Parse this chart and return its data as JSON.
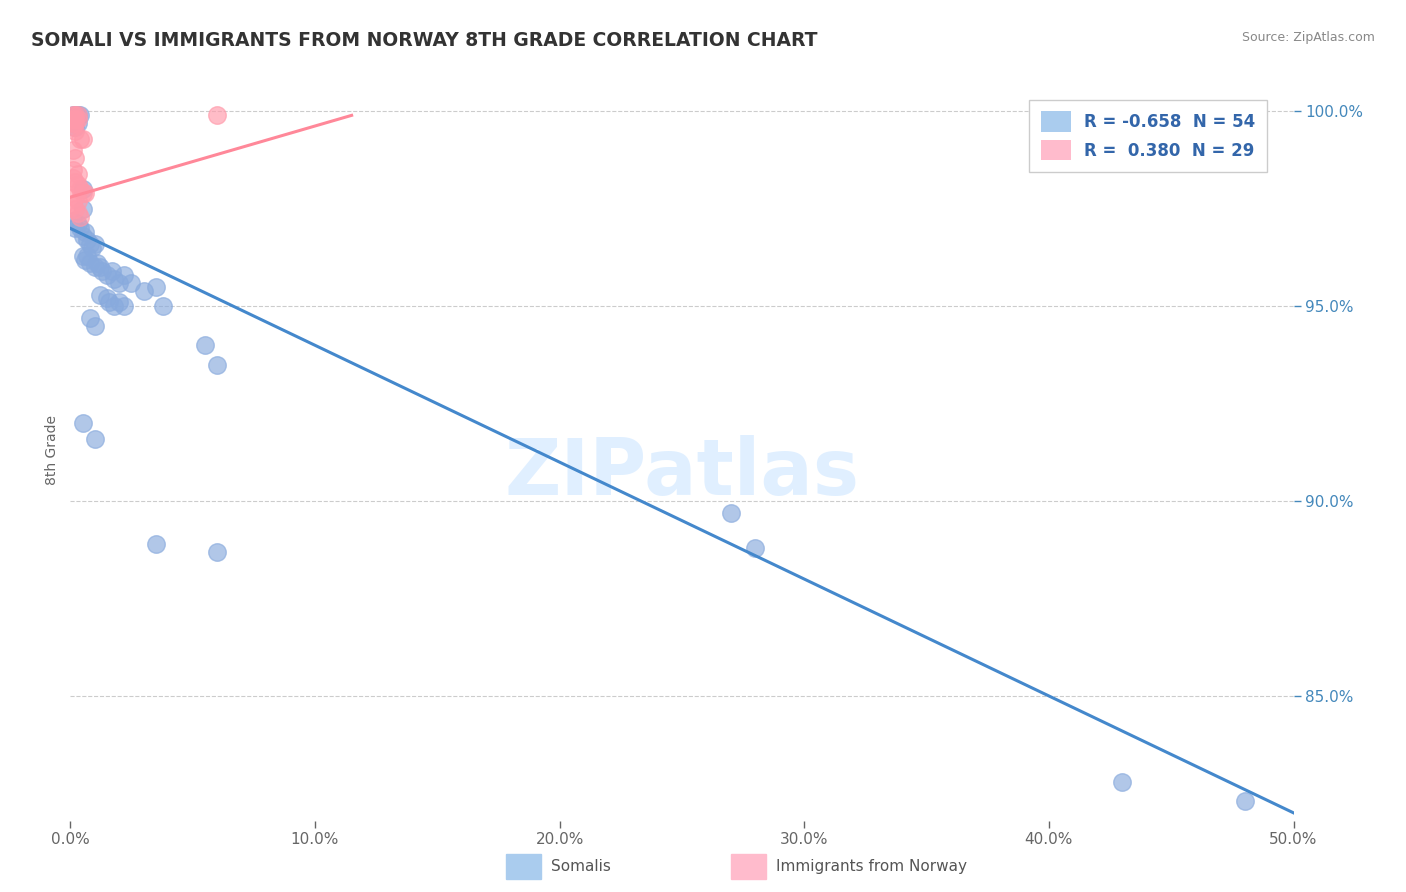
{
  "title": "SOMALI VS IMMIGRANTS FROM NORWAY 8TH GRADE CORRELATION CHART",
  "source": "Source: ZipAtlas.com",
  "ylabel": "8th Grade",
  "xlim": [
    0.0,
    0.5
  ],
  "ylim": [
    0.818,
    1.008
  ],
  "yticks": [
    0.85,
    0.9,
    0.95,
    1.0
  ],
  "ytick_labels": [
    "85.0%",
    "90.0%",
    "95.0%",
    "100.0%"
  ],
  "xticks": [
    0.0,
    0.1,
    0.2,
    0.3,
    0.4,
    0.5
  ],
  "xtick_labels": [
    "0.0%",
    "10.0%",
    "20.0%",
    "30.0%",
    "40.0%",
    "50.0%"
  ],
  "blue_R": -0.658,
  "blue_N": 54,
  "pink_R": 0.38,
  "pink_N": 29,
  "blue_color": "#88AADD",
  "pink_color": "#FF99AA",
  "trend_blue": "#4488CC",
  "trend_pink": "#FF8899",
  "watermark": "ZIPatlas",
  "legend_label_blue": "Somalis",
  "legend_label_pink": "Immigrants from Norway",
  "blue_trend_x": [
    0.0,
    0.5
  ],
  "blue_trend_y": [
    0.97,
    0.82
  ],
  "pink_trend_x": [
    0.0,
    0.115
  ],
  "pink_trend_y": [
    0.978,
    0.999
  ],
  "blue_scatter": [
    [
      0.001,
      0.999
    ],
    [
      0.002,
      0.999
    ],
    [
      0.003,
      0.999
    ],
    [
      0.004,
      0.999
    ],
    [
      0.001,
      0.997
    ],
    [
      0.002,
      0.996
    ],
    [
      0.003,
      0.997
    ],
    [
      0.005,
      0.98
    ],
    [
      0.005,
      0.975
    ],
    [
      0.001,
      0.972
    ],
    [
      0.002,
      0.97
    ],
    [
      0.003,
      0.971
    ],
    [
      0.004,
      0.97
    ],
    [
      0.005,
      0.968
    ],
    [
      0.006,
      0.969
    ],
    [
      0.007,
      0.967
    ],
    [
      0.008,
      0.966
    ],
    [
      0.009,
      0.965
    ],
    [
      0.01,
      0.966
    ],
    [
      0.005,
      0.963
    ],
    [
      0.006,
      0.962
    ],
    [
      0.007,
      0.963
    ],
    [
      0.008,
      0.961
    ],
    [
      0.01,
      0.96
    ],
    [
      0.011,
      0.961
    ],
    [
      0.012,
      0.96
    ],
    [
      0.013,
      0.959
    ],
    [
      0.015,
      0.958
    ],
    [
      0.017,
      0.959
    ],
    [
      0.018,
      0.957
    ],
    [
      0.02,
      0.956
    ],
    [
      0.022,
      0.958
    ],
    [
      0.025,
      0.956
    ],
    [
      0.03,
      0.954
    ],
    [
      0.012,
      0.953
    ],
    [
      0.015,
      0.952
    ],
    [
      0.016,
      0.951
    ],
    [
      0.018,
      0.95
    ],
    [
      0.02,
      0.951
    ],
    [
      0.022,
      0.95
    ],
    [
      0.008,
      0.947
    ],
    [
      0.01,
      0.945
    ],
    [
      0.035,
      0.955
    ],
    [
      0.038,
      0.95
    ],
    [
      0.055,
      0.94
    ],
    [
      0.06,
      0.935
    ],
    [
      0.005,
      0.92
    ],
    [
      0.01,
      0.916
    ],
    [
      0.035,
      0.889
    ],
    [
      0.06,
      0.887
    ],
    [
      0.27,
      0.897
    ],
    [
      0.28,
      0.888
    ],
    [
      0.43,
      0.828
    ],
    [
      0.48,
      0.823
    ]
  ],
  "pink_scatter": [
    [
      0.001,
      0.999
    ],
    [
      0.002,
      0.999
    ],
    [
      0.003,
      0.999
    ],
    [
      0.001,
      0.998
    ],
    [
      0.002,
      0.998
    ],
    [
      0.003,
      0.998
    ],
    [
      0.001,
      0.997
    ],
    [
      0.002,
      0.997
    ],
    [
      0.001,
      0.996
    ],
    [
      0.002,
      0.995
    ],
    [
      0.004,
      0.993
    ],
    [
      0.005,
      0.993
    ],
    [
      0.001,
      0.99
    ],
    [
      0.002,
      0.988
    ],
    [
      0.001,
      0.985
    ],
    [
      0.003,
      0.984
    ],
    [
      0.001,
      0.983
    ],
    [
      0.002,
      0.982
    ],
    [
      0.003,
      0.981
    ],
    [
      0.004,
      0.98
    ],
    [
      0.005,
      0.979
    ],
    [
      0.006,
      0.979
    ],
    [
      0.002,
      0.978
    ],
    [
      0.003,
      0.977
    ],
    [
      0.001,
      0.976
    ],
    [
      0.002,
      0.975
    ],
    [
      0.003,
      0.974
    ],
    [
      0.004,
      0.973
    ],
    [
      0.06,
      0.999
    ]
  ]
}
